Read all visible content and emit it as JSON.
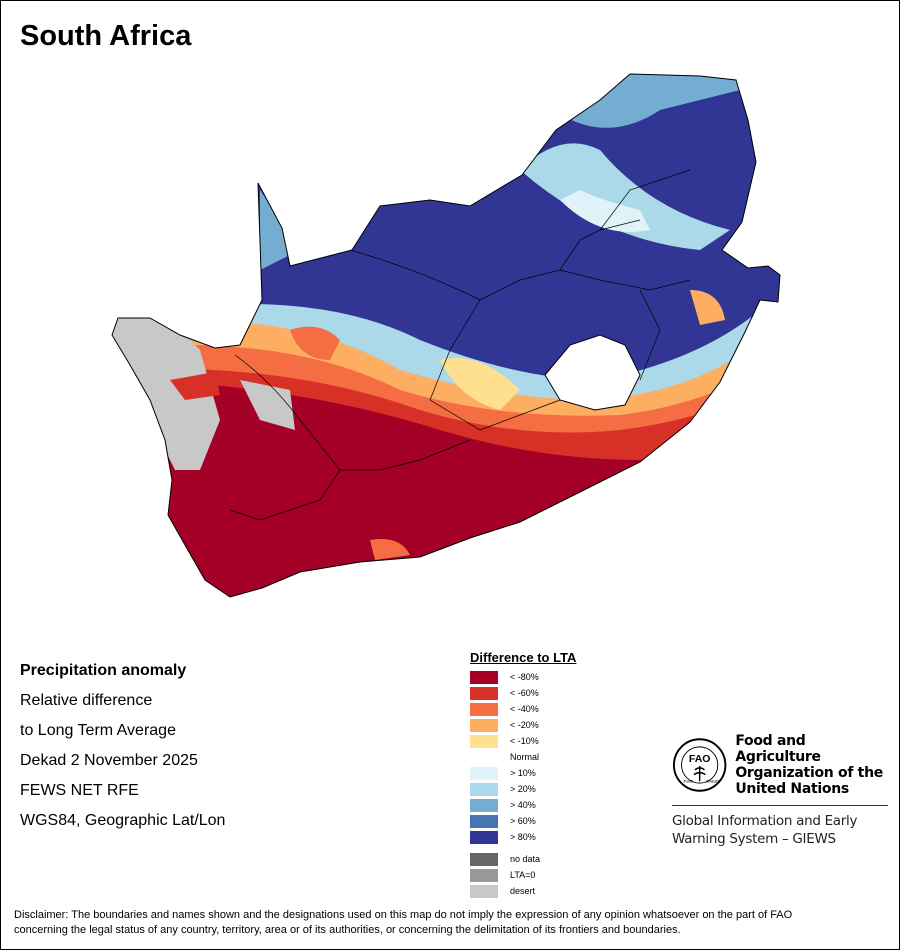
{
  "title": "South Africa",
  "info": {
    "heading": "Precipitation anomaly",
    "line1": "Relative difference",
    "line2": "to Long Term Average",
    "period": "Dekad 2 November 2025",
    "source": "FEWS NET RFE",
    "projection": "WGS84, Geographic Lat/Lon"
  },
  "legend": {
    "title": "Difference to LTA",
    "items": [
      {
        "label": "< -80%",
        "color": "#a50026"
      },
      {
        "label": "< -60%",
        "color": "#d73027"
      },
      {
        "label": "< -40%",
        "color": "#f46d43"
      },
      {
        "label": "< -20%",
        "color": "#fdae61"
      },
      {
        "label": "< -10%",
        "color": "#fee090"
      },
      {
        "label": "Normal",
        "color": "#ffffff"
      },
      {
        "label": "> 10%",
        "color": "#e0f3f8"
      },
      {
        "label": "> 20%",
        "color": "#abd9e9"
      },
      {
        "label": "> 40%",
        "color": "#74add1"
      },
      {
        "label": "> 60%",
        "color": "#4575b4"
      },
      {
        "label": "> 80%",
        "color": "#313695"
      }
    ],
    "extra": [
      {
        "label": "no data",
        "color": "#666666"
      },
      {
        "label": "LTA=0",
        "color": "#999999"
      },
      {
        "label": "desert",
        "color": "#c8c8c8"
      }
    ]
  },
  "fao": {
    "logo_text": "FAO FIAT PANIS",
    "name_line1": "Food and Agriculture",
    "name_line2": "Organization of the",
    "name_line3": "United Nations",
    "giews_line1": "Global Information and Early",
    "giews_line2": "Warning System – GIEWS"
  },
  "disclaimer": {
    "line1": "Disclaimer: The boundaries and names shown and the designations used on this map do not imply the expression of any opinion whatsoever on the part of FAO",
    "line2": "concerning the legal status of any country, territory, area or of its authorities, or concerning the delimitation of its frontiers and boundaries."
  }
}
